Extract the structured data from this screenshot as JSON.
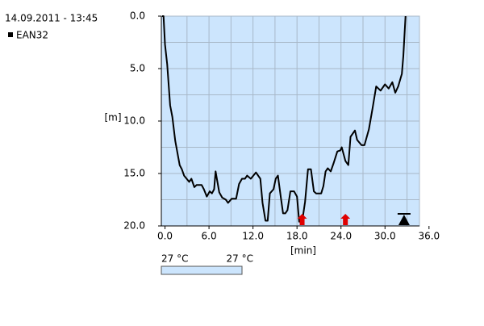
{
  "chart_data": {
    "type": "line",
    "header": "14.09.2011 - 13:45",
    "xlabel": "[min]",
    "ylabel": "[m]",
    "x": [
      -0.4,
      -0.2,
      0,
      0.3,
      0.7,
      1.0,
      1.4,
      2.0,
      2.3,
      2.6,
      3.3,
      3.6,
      4.0,
      4.3,
      5.0,
      5.3,
      5.7,
      6.1,
      6.4,
      6.7,
      6.9,
      7.4,
      7.8,
      8.3,
      8.6,
      9.1,
      9.7,
      10.1,
      10.5,
      10.9,
      11.2,
      11.7,
      12.4,
      13.0,
      13.3,
      13.7,
      14.0,
      14.3,
      14.8,
      15.1,
      15.4,
      15.8,
      16.1,
      16.4,
      16.7,
      17.1,
      17.6,
      18.0,
      18.3,
      18.7,
      19.1,
      19.5,
      19.9,
      20.3,
      20.6,
      21.3,
      21.6,
      21.9,
      22.2,
      22.6,
      23.0,
      23.5,
      23.9,
      24.1,
      24.6,
      25.0,
      25.3,
      25.9,
      26.2,
      26.8,
      27.2,
      27.8,
      28.3,
      28.8,
      29.4,
      30.0,
      30.5,
      31.0,
      31.4,
      31.8,
      32.3,
      32.5,
      32.8
    ],
    "series": [
      {
        "name": "EAN32",
        "color": "#000000",
        "values": [
          0,
          0,
          2.7,
          4.6,
          8.5,
          9.6,
          11.9,
          14.2,
          14.6,
          15.2,
          15.8,
          15.5,
          16.3,
          16.1,
          16.1,
          16.5,
          17.2,
          16.7,
          16.9,
          16.5,
          14.8,
          16.8,
          17.3,
          17.5,
          17.8,
          17.4,
          17.4,
          16.0,
          15.5,
          15.5,
          15.2,
          15.5,
          14.9,
          15.5,
          17.8,
          19.5,
          19.5,
          16.9,
          16.5,
          15.5,
          15.2,
          17.3,
          18.8,
          18.8,
          18.5,
          16.7,
          16.7,
          17.2,
          19.6,
          19.6,
          17.7,
          14.6,
          14.6,
          16.7,
          16.9,
          16.9,
          16.2,
          14.8,
          14.5,
          14.8,
          14.0,
          12.9,
          12.8,
          12.5,
          13.8,
          14.2,
          11.5,
          10.9,
          11.8,
          12.3,
          12.3,
          10.8,
          8.8,
          6.7,
          7.1,
          6.5,
          6.9,
          6.3,
          7.3,
          6.7,
          5.5,
          3.8,
          0
        ]
      }
    ],
    "xlim": [
      -0.5,
      34.7
    ],
    "ylim": [
      0,
      20
    ],
    "y_inverted": true,
    "xticks": [
      {
        "value": 0,
        "label": "0.0"
      },
      {
        "value": 6,
        "label": "6.0"
      },
      {
        "value": 12,
        "label": "12.0"
      },
      {
        "value": 18,
        "label": "18.0"
      },
      {
        "value": 24,
        "label": "24.0"
      },
      {
        "value": 30,
        "label": "30.0"
      },
      {
        "value": 36,
        "label": "36.0"
      }
    ],
    "yticks": [
      {
        "value": 0,
        "label": "0.0"
      },
      {
        "value": 5,
        "label": "5.0"
      },
      {
        "value": 10,
        "label": "10.0"
      },
      {
        "value": 15,
        "label": "15.0"
      },
      {
        "value": 20,
        "label": "20.0"
      }
    ],
    "xgrid": [
      3,
      6,
      9,
      12,
      15,
      18,
      21,
      24,
      27,
      30,
      33
    ],
    "ygrid": [
      2.5,
      5,
      7.5,
      10,
      12.5,
      15,
      17.5
    ],
    "background": "#cce5fd",
    "grid_color": "#a8b8c8",
    "markers": [
      {
        "x": 18.7,
        "color": "#e00000",
        "shape": "warning"
      },
      {
        "x": 24.6,
        "color": "#e00000",
        "shape": "warning"
      },
      {
        "x": 32.6,
        "color": "#000000",
        "shape": "triangle"
      }
    ],
    "temperature": {
      "labels": [
        "27 °C",
        "27 °C"
      ],
      "color": "#cce5fd"
    }
  }
}
